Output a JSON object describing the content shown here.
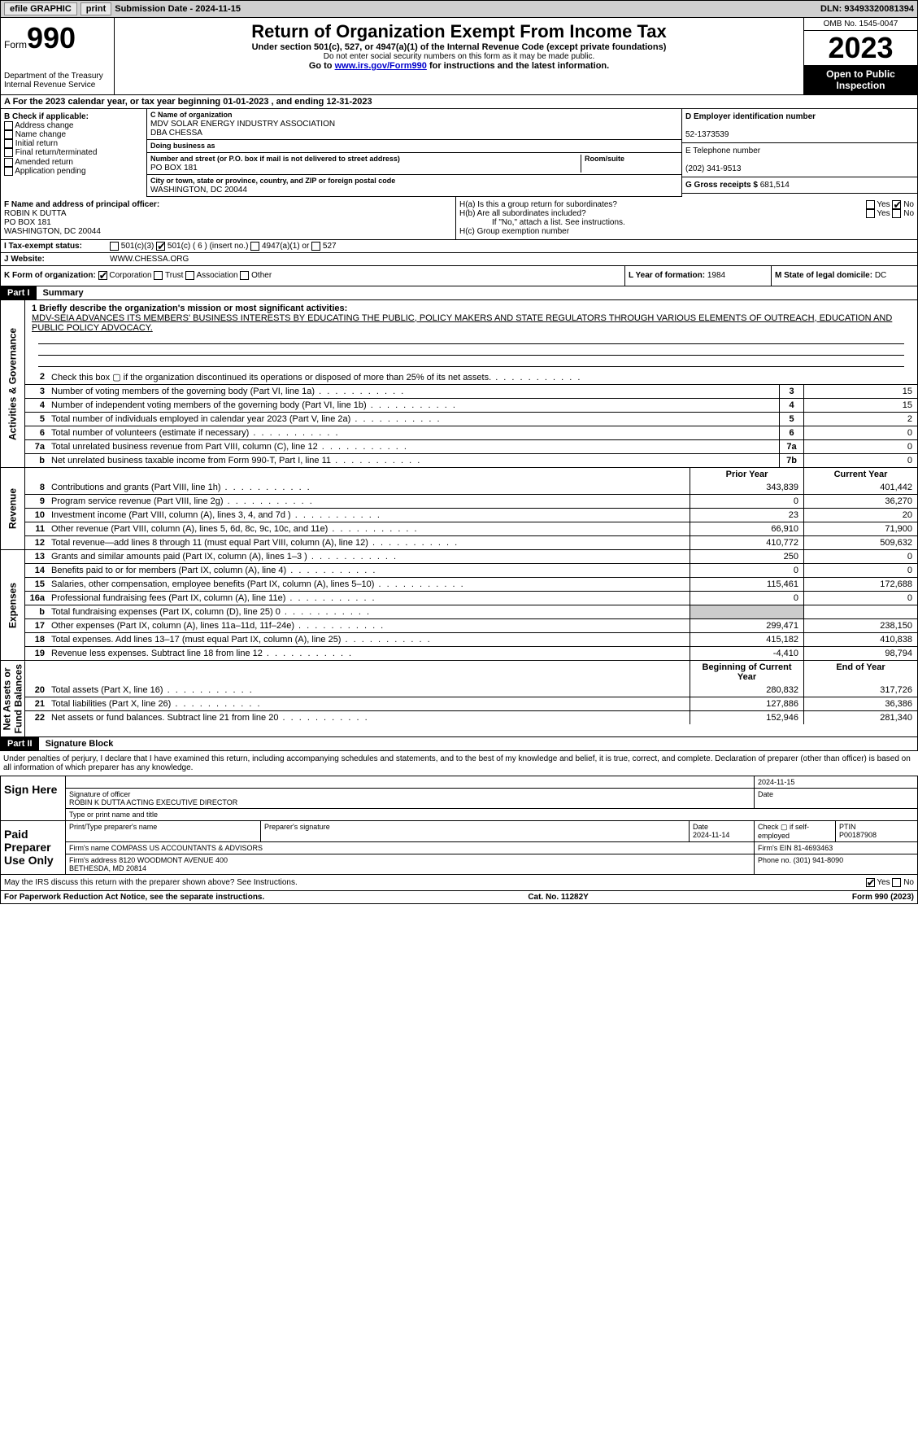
{
  "topbar": {
    "efile": "efile GRAPHIC",
    "print": "print",
    "sub_label": "Submission Date - ",
    "sub_date": "2024-11-15",
    "dln_label": "DLN: ",
    "dln": "93493320081394"
  },
  "header": {
    "form_word": "Form",
    "form_no": "990",
    "dept": "Department of the Treasury\nInternal Revenue Service",
    "title": "Return of Organization Exempt From Income Tax",
    "sub": "Under section 501(c), 527, or 4947(a)(1) of the Internal Revenue Code (except private foundations)",
    "note": "Do not enter social security numbers on this form as it may be made public.",
    "goto_pre": "Go to ",
    "goto_link": "www.irs.gov/Form990",
    "goto_post": " for instructions and the latest information.",
    "omb": "OMB No. 1545-0047",
    "year": "2023",
    "inspect": "Open to Public Inspection"
  },
  "cal": {
    "text_a": "A For the 2023 calendar year, or tax year beginning ",
    "begin": "01-01-2023",
    "mid": " , and ending ",
    "end": "12-31-2023"
  },
  "boxB": {
    "title": "B Check if applicable:",
    "opts": [
      "Address change",
      "Name change",
      "Initial return",
      "Final return/terminated",
      "Amended return",
      "Application pending"
    ]
  },
  "boxC": {
    "name_lbl": "C Name of organization",
    "name1": "MDV SOLAR ENERGY INDUSTRY ASSOCIATION",
    "name2": "DBA CHESSA",
    "dba_lbl": "Doing business as",
    "addr_lbl": "Number and street (or P.O. box if mail is not delivered to street address)",
    "addr": "PO BOX 181",
    "room_lbl": "Room/suite",
    "city_lbl": "City or town, state or province, country, and ZIP or foreign postal code",
    "city": "WASHINGTON, DC  20044"
  },
  "boxD": {
    "ein_lbl": "D Employer identification number",
    "ein": "52-1373539",
    "tel_lbl": "E Telephone number",
    "tel": "(202) 341-9513",
    "gross_lbl": "G Gross receipts $ ",
    "gross": "681,514"
  },
  "officer": {
    "f_lbl": "F Name and address of principal officer:",
    "name": "ROBIN K DUTTA",
    "addr1": "PO BOX 181",
    "addr2": "WASHINGTON, DC  20044",
    "ha": "H(a)  Is this a group return for subordinates?",
    "ha_ans": "No",
    "hb": "H(b)  Are all subordinates included?",
    "hb_note": "If \"No,\" attach a list. See instructions.",
    "hc": "H(c)  Group exemption number"
  },
  "taxstatus": {
    "i_lbl": "I    Tax-exempt status:",
    "c3": "501(c)(3)",
    "c_ins": "501(c) ( 6 ) (insert no.)",
    "a1": "4947(a)(1) or",
    "s527": "527",
    "j_lbl": "J   Website:",
    "j_val": "WWW.CHESSA.ORG"
  },
  "kform": {
    "k": "K Form of organization:",
    "corp": "Corporation",
    "trust": "Trust",
    "assoc": "Association",
    "other": "Other",
    "l": "L Year of formation: ",
    "l_val": "1984",
    "m": "M State of legal domicile: ",
    "m_val": "DC"
  },
  "part1": {
    "num": "Part I",
    "title": "Summary"
  },
  "mission": {
    "q": "1   Briefly describe the organization's mission or most significant activities:",
    "text": "MDV-SEIA ADVANCES ITS MEMBERS' BUSINESS INTERESTS BY EDUCATING THE PUBLIC, POLICY MAKERS AND STATE REGULATORS THROUGH VARIOUS ELEMENTS OF OUTREACH, EDUCATION AND PUBLIC POLICY ADVOCACY."
  },
  "vtabs": {
    "ag": "Activities & Governance",
    "rev": "Revenue",
    "exp": "Expenses",
    "na": "Net Assets or\nFund Balances"
  },
  "ag_lines": [
    {
      "n": "2",
      "t": "Check this box  ▢  if the organization discontinued its operations or disposed of more than 25% of its net assets."
    },
    {
      "n": "3",
      "t": "Number of voting members of the governing body (Part VI, line 1a)",
      "box": "3",
      "v": "15"
    },
    {
      "n": "4",
      "t": "Number of independent voting members of the governing body (Part VI, line 1b)",
      "box": "4",
      "v": "15"
    },
    {
      "n": "5",
      "t": "Total number of individuals employed in calendar year 2023 (Part V, line 2a)",
      "box": "5",
      "v": "2"
    },
    {
      "n": "6",
      "t": "Total number of volunteers (estimate if necessary)",
      "box": "6",
      "v": "0"
    },
    {
      "n": "7a",
      "t": "Total unrelated business revenue from Part VIII, column (C), line 12",
      "box": "7a",
      "v": "0"
    },
    {
      "n": "b",
      "t": "Net unrelated business taxable income from Form 990-T, Part I, line 11",
      "box": "7b",
      "v": "0"
    }
  ],
  "rev_hdr": {
    "py": "Prior Year",
    "cy": "Current Year"
  },
  "rev_lines": [
    {
      "n": "8",
      "t": "Contributions and grants (Part VIII, line 1h)",
      "py": "343,839",
      "cy": "401,442"
    },
    {
      "n": "9",
      "t": "Program service revenue (Part VIII, line 2g)",
      "py": "0",
      "cy": "36,270"
    },
    {
      "n": "10",
      "t": "Investment income (Part VIII, column (A), lines 3, 4, and 7d )",
      "py": "23",
      "cy": "20"
    },
    {
      "n": "11",
      "t": "Other revenue (Part VIII, column (A), lines 5, 6d, 8c, 9c, 10c, and 11e)",
      "py": "66,910",
      "cy": "71,900"
    },
    {
      "n": "12",
      "t": "Total revenue—add lines 8 through 11 (must equal Part VIII, column (A), line 12)",
      "py": "410,772",
      "cy": "509,632"
    }
  ],
  "exp_lines": [
    {
      "n": "13",
      "t": "Grants and similar amounts paid (Part IX, column (A), lines 1–3 )",
      "py": "250",
      "cy": "0"
    },
    {
      "n": "14",
      "t": "Benefits paid to or for members (Part IX, column (A), line 4)",
      "py": "0",
      "cy": "0"
    },
    {
      "n": "15",
      "t": "Salaries, other compensation, employee benefits (Part IX, column (A), lines 5–10)",
      "py": "115,461",
      "cy": "172,688"
    },
    {
      "n": "16a",
      "t": "Professional fundraising fees (Part IX, column (A), line 11e)",
      "py": "0",
      "cy": "0"
    },
    {
      "n": "b",
      "t": "Total fundraising expenses (Part IX, column (D), line 25) 0",
      "shade": true
    },
    {
      "n": "17",
      "t": "Other expenses (Part IX, column (A), lines 11a–11d, 11f–24e)",
      "py": "299,471",
      "cy": "238,150"
    },
    {
      "n": "18",
      "t": "Total expenses. Add lines 13–17 (must equal Part IX, column (A), line 25)",
      "py": "415,182",
      "cy": "410,838"
    },
    {
      "n": "19",
      "t": "Revenue less expenses. Subtract line 18 from line 12",
      "py": "-4,410",
      "cy": "98,794"
    }
  ],
  "na_hdr": {
    "py": "Beginning of Current Year",
    "cy": "End of Year"
  },
  "na_lines": [
    {
      "n": "20",
      "t": "Total assets (Part X, line 16)",
      "py": "280,832",
      "cy": "317,726"
    },
    {
      "n": "21",
      "t": "Total liabilities (Part X, line 26)",
      "py": "127,886",
      "cy": "36,386"
    },
    {
      "n": "22",
      "t": "Net assets or fund balances. Subtract line 21 from line 20",
      "py": "152,946",
      "cy": "281,340"
    }
  ],
  "part2": {
    "num": "Part II",
    "title": "Signature Block"
  },
  "sig": {
    "decl": "Under penalties of perjury, I declare that I have examined this return, including accompanying schedules and statements, and to the best of my knowledge and belief, it is true, correct, and complete. Declaration of preparer (other than officer) is based on all information of which preparer has any knowledge.",
    "sign_here": "Sign Here",
    "sig_officer": "Signature of officer",
    "officer_name": "ROBIN K DUTTA  ACTING EXECUTIVE DIRECTOR",
    "type_lbl": "Type or print name and title",
    "date_lbl": "Date",
    "date_val": "2024-11-15",
    "paid": "Paid Preparer Use Only",
    "prep_name_lbl": "Print/Type preparer's name",
    "prep_sig_lbl": "Preparer's signature",
    "prep_date_lbl": "Date",
    "prep_date": "2024-11-14",
    "self_lbl": "Check ▢ if self-employed",
    "ptin_lbl": "PTIN",
    "ptin": "P00187908",
    "firm_name_lbl": "Firm's name",
    "firm_name": "COMPASS US ACCOUNTANTS & ADVISORS",
    "firm_ein_lbl": "Firm's EIN",
    "firm_ein": "81-4693463",
    "firm_addr_lbl": "Firm's address",
    "firm_addr": "8120 WOODMONT AVENUE 400\nBETHESDA, MD  20814",
    "phone_lbl": "Phone no.",
    "phone": "(301) 941-8090",
    "discuss": "May the IRS discuss this return with the preparer shown above? See Instructions.",
    "yes": "Yes",
    "no": "No"
  },
  "footer": {
    "pra": "For Paperwork Reduction Act Notice, see the separate instructions.",
    "cat": "Cat. No. 11282Y",
    "form": "Form 990 (2023)"
  }
}
